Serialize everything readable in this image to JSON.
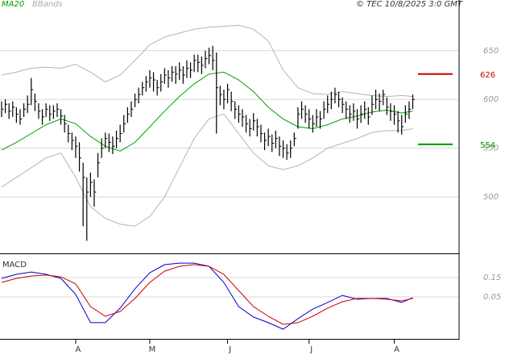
{
  "copyright": "© TEC 10/8/2025 3:0 GMT",
  "chart_data": [
    {
      "type": "hlc",
      "color": "#000000",
      "xlim": [
        -0.43,
        123.5
      ],
      "ylim": [
        443,
        692
      ],
      "yticks": [
        500,
        550,
        600,
        650
      ],
      "grid": true,
      "high": [
        598,
        600,
        596,
        598,
        592,
        590,
        596,
        604,
        622,
        606,
        596,
        590,
        596,
        594,
        594,
        596,
        590,
        584,
        574,
        566,
        562,
        556,
        535,
        520,
        525,
        518,
        545,
        560,
        566,
        565,
        562,
        568,
        574,
        584,
        592,
        598,
        606,
        612,
        618,
        624,
        630,
        628,
        620,
        626,
        632,
        630,
        634,
        634,
        638,
        634,
        640,
        638,
        646,
        646,
        644,
        650,
        653,
        655,
        648,
        614,
        610,
        616,
        608,
        598,
        594,
        590,
        584,
        580,
        586,
        580,
        574,
        566,
        570,
        564,
        568,
        562,
        558,
        554,
        558,
        566,
        592,
        598,
        594,
        590,
        584,
        590,
        588,
        598,
        604,
        608,
        612,
        608,
        602,
        598,
        594,
        596,
        590,
        594,
        598,
        592,
        604,
        610,
        606,
        610,
        602,
        596,
        594,
        588,
        584,
        594,
        598,
        605
      ],
      "low": [
        582,
        586,
        580,
        582,
        576,
        574,
        582,
        586,
        594,
        588,
        580,
        574,
        582,
        578,
        580,
        582,
        574,
        566,
        556,
        548,
        540,
        526,
        470,
        455,
        500,
        490,
        520,
        540,
        550,
        546,
        544,
        550,
        556,
        566,
        576,
        582,
        592,
        596,
        604,
        608,
        612,
        608,
        604,
        608,
        616,
        612,
        618,
        616,
        620,
        616,
        622,
        622,
        628,
        628,
        626,
        632,
        636,
        630,
        565,
        594,
        590,
        596,
        588,
        580,
        576,
        572,
        566,
        562,
        568,
        562,
        556,
        548,
        552,
        546,
        550,
        542,
        540,
        538,
        540,
        552,
        570,
        580,
        576,
        570,
        566,
        572,
        570,
        580,
        586,
        590,
        596,
        592,
        586,
        580,
        576,
        578,
        570,
        576,
        580,
        574,
        584,
        590,
        588,
        594,
        584,
        578,
        574,
        566,
        564,
        576,
        580,
        590
      ],
      "close": [
        590,
        595,
        588,
        592,
        585,
        580,
        590,
        595,
        610,
        598,
        588,
        582,
        590,
        585,
        588,
        590,
        583,
        575,
        565,
        558,
        552,
        540,
        520,
        505,
        515,
        505,
        535,
        550,
        560,
        556,
        552,
        560,
        565,
        575,
        585,
        590,
        600,
        605,
        612,
        618,
        622,
        620,
        612,
        618,
        625,
        622,
        628,
        626,
        630,
        625,
        632,
        630,
        640,
        638,
        635,
        642,
        645,
        640,
        612,
        605,
        600,
        610,
        598,
        590,
        585,
        582,
        575,
        570,
        578,
        572,
        565,
        558,
        562,
        555,
        560,
        552,
        550,
        545,
        550,
        560,
        585,
        590,
        585,
        580,
        575,
        582,
        580,
        590,
        595,
        600,
        605,
        600,
        595,
        590,
        585,
        588,
        580,
        585,
        590,
        582,
        595,
        600,
        598,
        605,
        592,
        588,
        585,
        578,
        572,
        585,
        590,
        600
      ],
      "lines": [
        {
          "name": "MA20",
          "color": "#00a000",
          "x": [
            0,
            4,
            8,
            12,
            16,
            20,
            24,
            28,
            32,
            36,
            40,
            44,
            48,
            52,
            56,
            60,
            64,
            68,
            72,
            76,
            80,
            84,
            88,
            92,
            96,
            100,
            104,
            108,
            111
          ],
          "values": [
            548,
            556,
            565,
            574,
            580,
            575,
            562,
            552,
            547,
            556,
            572,
            588,
            603,
            616,
            626,
            628,
            620,
            608,
            592,
            580,
            572,
            570,
            574,
            580,
            583,
            587,
            589,
            586,
            588
          ]
        },
        {
          "name": "BBands",
          "color": "#b4b4b4",
          "x": [
            0,
            4,
            8,
            12,
            16,
            20,
            24,
            28,
            32,
            36,
            40,
            44,
            48,
            52,
            56,
            60,
            64,
            68,
            72,
            76,
            80,
            84,
            88,
            92,
            96,
            100,
            104,
            108,
            111
          ],
          "upper": [
            625,
            628,
            632,
            633,
            632,
            636,
            628,
            618,
            625,
            640,
            656,
            664,
            668,
            672,
            674,
            675,
            676,
            672,
            660,
            630,
            612,
            606,
            605,
            608,
            606,
            604,
            603,
            604,
            603
          ],
          "lower": [
            510,
            520,
            530,
            540,
            545,
            520,
            490,
            478,
            472,
            470,
            480,
            500,
            530,
            560,
            580,
            585,
            565,
            545,
            532,
            528,
            532,
            540,
            550,
            555,
            560,
            566,
            568,
            568,
            570
          ]
        }
      ],
      "levels": [
        {
          "value": 626,
          "color": "#cc0000"
        },
        {
          "value": 554,
          "color": "#009900"
        }
      ]
    },
    {
      "type": "line",
      "title": "MACD",
      "xlim": [
        -0.43,
        123.5
      ],
      "ylim": [
        -0.167,
        0.267
      ],
      "yticks": [
        0.15,
        0.05
      ],
      "grid": true,
      "xticks": [
        {
          "value": 20,
          "label": "A"
        },
        {
          "value": 40,
          "label": "M"
        },
        {
          "value": 61,
          "label": "J"
        },
        {
          "value": 83,
          "label": "J"
        },
        {
          "value": 106,
          "label": "A"
        }
      ],
      "x": [
        0,
        4,
        8,
        12,
        16,
        20,
        24,
        28,
        32,
        36,
        40,
        44,
        48,
        52,
        56,
        60,
        64,
        68,
        72,
        76,
        80,
        84,
        88,
        92,
        96,
        100,
        104,
        108,
        111
      ],
      "series": [
        {
          "color": "#0000cc",
          "values": [
            0.146,
            0.167,
            0.179,
            0.167,
            0.146,
            0.063,
            -0.083,
            -0.083,
            -0.008,
            0.092,
            0.175,
            0.217,
            0.225,
            0.225,
            0.208,
            0.125,
            0,
            -0.054,
            -0.083,
            -0.117,
            -0.063,
            -0.013,
            0.021,
            0.058,
            0.038,
            0.042,
            0.042,
            0.021,
            0.046
          ]
        },
        {
          "color": "#cc0000",
          "values": [
            0.125,
            0.146,
            0.158,
            0.163,
            0.154,
            0.117,
            0,
            -0.05,
            -0.025,
            0.042,
            0.125,
            0.183,
            0.208,
            0.217,
            0.208,
            0.167,
            0.083,
            0,
            -0.05,
            -0.092,
            -0.083,
            -0.05,
            -0.008,
            0.025,
            0.042,
            0.042,
            0.038,
            0.029,
            0.042
          ]
        }
      ]
    }
  ]
}
